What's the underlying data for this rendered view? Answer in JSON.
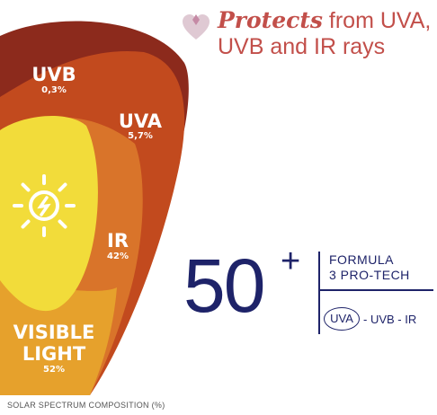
{
  "colors": {
    "uvb_band": "#8c2a1c",
    "uva_band": "#c24a1e",
    "ir_band": "#d9742a",
    "visible_band": "#e6a12c",
    "sun_shape": "#f2dc3a",
    "sun_icon": "#ffffff",
    "navy": "#1e2369",
    "headline": "#c24f4a",
    "heart": "#dfc9d3"
  },
  "icons": {
    "heart": "heart-icon",
    "sun": "sun-icon"
  },
  "headline": {
    "emphasis": "Protects",
    "line1_rest": " from UVA,",
    "line2": "UVB and IR rays"
  },
  "bands": {
    "uvb": {
      "label": "UVB",
      "pct": "0,3%"
    },
    "uva": {
      "label": "UVA",
      "pct": "5,7%"
    },
    "ir": {
      "label": "IR",
      "pct": "42%"
    },
    "visible": {
      "label_line1": "VISIBLE",
      "label_line2": "LIGHT",
      "pct": "52%"
    }
  },
  "spf": {
    "number": "50",
    "plus": "+"
  },
  "formula": {
    "line1": "FORMULA",
    "line2": "3 PRO-TECH",
    "ray_circled": "UVA",
    "ray_rest": "- UVB - IR"
  },
  "caption": "SOLAR SPECTRUM COMPOSITION (%)"
}
